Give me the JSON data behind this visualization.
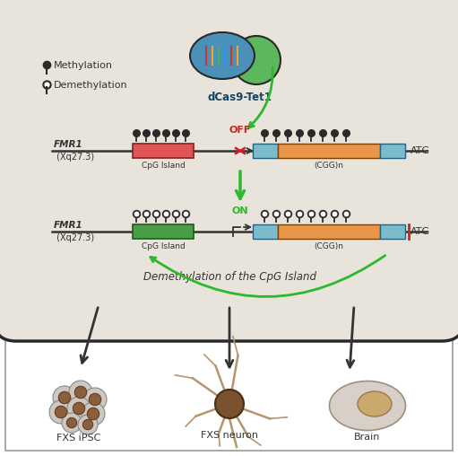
{
  "cell_bg": "#e8e3db",
  "border_color": "#2a2a2a",
  "green": "#2db82d",
  "red": "#cc2222",
  "blue_cas9": "#4a90b8",
  "green_tet1": "#5cb85c",
  "cpg_island_off_color": "#e05555",
  "cpg_island_on_color": "#4a9e4a",
  "cgg_color": "#e8964a",
  "flank_color": "#7bbccc",
  "line_color": "#333333",
  "methyl_filled": "#2a2a2a",
  "label_methylation": "Methylation",
  "label_demethylation": "Demethylation",
  "label_dCas9": "dCas9-Tet1",
  "label_cpg": "CpG Island",
  "label_cgg": "(CGG)n",
  "label_atg": "ATG",
  "label_off": "OFF",
  "label_on": "ON",
  "label_demeth_cpg": "Demethylation of the CpG Island",
  "label_ipsc": "FXS iPSC",
  "label_neuron": "FXS neuron",
  "label_brain": "Brain"
}
